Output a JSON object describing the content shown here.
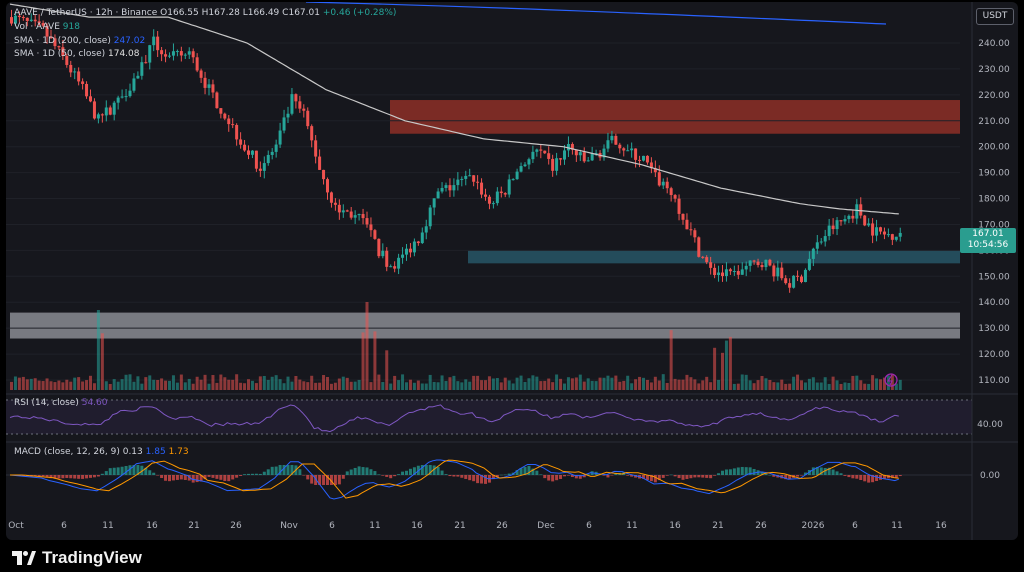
{
  "header": {
    "symbol": "AAVE / TetherUS · 12h · Binance",
    "open_label": "O",
    "open": "166.55",
    "high_label": "H",
    "high": "167.28",
    "low_label": "L",
    "low": "166.49",
    "close_label": "C",
    "close": "167.01",
    "change": "+0.46 (+0.28%)",
    "volume_label": "Vol · AAVE",
    "volume": "918",
    "sma200_label": "SMA · 1D (200, close)",
    "sma200": "247.02",
    "sma50_label": "SMA · 1D (50, close)",
    "sma50": "174.08",
    "currency_button": "USDT"
  },
  "price_tag": {
    "price": "167.01",
    "countdown": "10:54:56"
  },
  "rsi": {
    "label": "RSI (14, close)",
    "value": "54.60",
    "axis_label": "40.00"
  },
  "macd": {
    "label": "MACD (close, 12, 26, 9)",
    "v1": "0.13",
    "v2": "1.85",
    "v3": "1.73",
    "axis_label": "0.00"
  },
  "brand": {
    "name": "TradingView"
  },
  "colors": {
    "up": "#26a69a",
    "down": "#ef5350",
    "bg": "#16171d",
    "sma50": "#c8c8c8",
    "sma200": "#2962ff",
    "rsi": "#7e57c2",
    "macd": "#2962ff",
    "signal": "#ff9800"
  },
  "chart_data": {
    "type": "candlestick",
    "y_axis": {
      "ticks": [
        240,
        230,
        220,
        210,
        200,
        190,
        180,
        170,
        160,
        150,
        140,
        130,
        120,
        110
      ],
      "tick_labels": [
        "240.00",
        "230.00",
        "220.00",
        "210.00",
        "200.00",
        "190.00",
        "180.00",
        "170.00",
        "160.00",
        "150.00",
        "140.00",
        "130.00",
        "120.00",
        "110.00"
      ],
      "range": [
        105,
        250
      ]
    },
    "x_axis": {
      "tick_labels": [
        "Oct",
        "6",
        "11",
        "16",
        "21",
        "26",
        "Nov",
        "6",
        "11",
        "16",
        "21",
        "26",
        "Dec",
        "6",
        "11",
        "16",
        "21",
        "26",
        "2026",
        "6",
        "11",
        "16"
      ]
    },
    "price_path": [
      [
        0,
        250
      ],
      [
        8,
        245
      ],
      [
        14,
        232
      ],
      [
        18,
        222
      ],
      [
        22,
        210
      ],
      [
        27,
        218
      ],
      [
        31,
        226
      ],
      [
        36,
        240
      ],
      [
        40,
        234
      ],
      [
        45,
        236
      ],
      [
        50,
        222
      ],
      [
        55,
        210
      ],
      [
        59,
        200
      ],
      [
        63,
        192
      ],
      [
        67,
        200
      ],
      [
        71,
        218
      ],
      [
        74,
        212
      ],
      [
        78,
        192
      ],
      [
        82,
        176
      ],
      [
        86,
        174
      ],
      [
        90,
        170
      ],
      [
        93,
        160
      ],
      [
        96,
        154
      ],
      [
        98,
        156
      ],
      [
        103,
        165
      ],
      [
        108,
        182
      ],
      [
        113,
        186
      ],
      [
        117,
        188
      ],
      [
        121,
        178
      ],
      [
        125,
        183
      ],
      [
        129,
        193
      ],
      [
        133,
        198
      ],
      [
        137,
        192
      ],
      [
        141,
        200
      ],
      [
        145,
        194
      ],
      [
        149,
        198
      ],
      [
        153,
        203
      ],
      [
        156,
        198
      ],
      [
        160,
        195
      ],
      [
        163,
        188
      ],
      [
        167,
        183
      ],
      [
        171,
        170
      ],
      [
        174,
        160
      ],
      [
        177,
        152
      ],
      [
        182,
        150
      ],
      [
        187,
        154
      ],
      [
        190,
        156
      ],
      [
        194,
        151
      ],
      [
        197,
        147
      ],
      [
        200,
        150
      ],
      [
        203,
        160
      ],
      [
        207,
        168
      ],
      [
        211,
        172
      ],
      [
        214,
        176
      ],
      [
        218,
        168
      ],
      [
        221,
        166
      ],
      [
        225,
        167
      ]
    ],
    "sma50_path": [
      [
        0,
        255
      ],
      [
        20,
        250
      ],
      [
        40,
        250
      ],
      [
        60,
        240
      ],
      [
        80,
        222
      ],
      [
        100,
        210
      ],
      [
        120,
        203
      ],
      [
        140,
        200
      ],
      [
        160,
        193
      ],
      [
        180,
        184
      ],
      [
        200,
        178
      ],
      [
        210,
        176
      ],
      [
        225,
        174.08
      ]
    ],
    "sma200_path": [
      [
        30,
        252
      ],
      [
        60,
        251
      ],
      [
        100,
        250
      ],
      [
        150,
        249
      ],
      [
        200,
        248
      ],
      [
        225,
        247.02
      ]
    ],
    "zones": [
      {
        "name": "resistance",
        "from": 205,
        "to": 218,
        "color": "#c0392b"
      },
      {
        "name": "support",
        "from": 155,
        "to": 160,
        "color": "#2e6f86"
      },
      {
        "name": "demand",
        "from": 126,
        "to": 136,
        "color": "#8a8c93"
      }
    ]
  }
}
